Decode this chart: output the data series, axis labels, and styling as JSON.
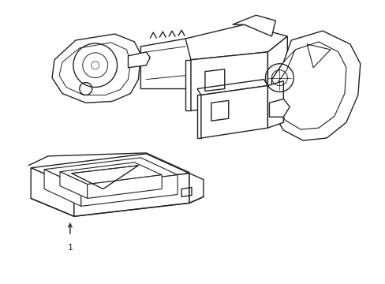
{
  "background_color": "#ffffff",
  "line_color": "#222222",
  "line_width": 1.0,
  "fig_width": 4.89,
  "fig_height": 3.6,
  "dpi": 100,
  "label_text": "1",
  "label_fontsize": 8
}
